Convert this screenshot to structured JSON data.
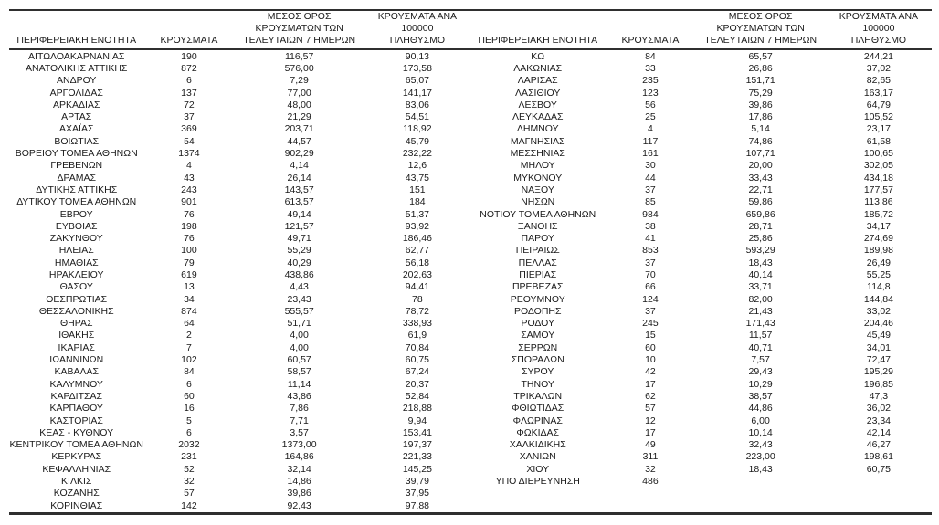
{
  "colors": {
    "background": "#ffffff",
    "text": "#1a1a1a",
    "border": "#2f2f2f"
  },
  "tables": [
    {
      "headers": [
        "ΠΕΡΙΦΕΡΕΙΑΚΗ ΕΝΟΤΗΤΑ",
        "ΚΡΟΥΣΜΑΤΑ",
        "ΜΕΣΟΣ ΟΡΟΣ\nΚΡΟΥΣΜΑΤΩΝ ΤΩΝ\nΤΕΛΕΥΤΑΙΩΝ 7 ΗΜΕΡΩΝ",
        "ΚΡΟΥΣΜΑΤΑ ΑΝΑ 100000\nΠΛΗΘΥΣΜΟ"
      ],
      "rows": [
        [
          "ΑΙΤΩΛΟΑΚΑΡΝΑΝΙΑΣ",
          "190",
          "116,57",
          "90,13"
        ],
        [
          "ΑΝΑΤΟΛΙΚΗΣ ΑΤΤΙΚΗΣ",
          "872",
          "576,00",
          "173,58"
        ],
        [
          "ΑΝΔΡΟΥ",
          "6",
          "7,29",
          "65,07"
        ],
        [
          "ΑΡΓΟΛΙΔΑΣ",
          "137",
          "77,00",
          "141,17"
        ],
        [
          "ΑΡΚΑΔΙΑΣ",
          "72",
          "48,00",
          "83,06"
        ],
        [
          "ΑΡΤΑΣ",
          "37",
          "21,29",
          "54,51"
        ],
        [
          "ΑΧΑΪΑΣ",
          "369",
          "203,71",
          "118,92"
        ],
        [
          "ΒΟΙΩΤΙΑΣ",
          "54",
          "44,57",
          "45,79"
        ],
        [
          "ΒΟΡΕΙΟΥ ΤΟΜΕΑ ΑΘΗΝΩΝ",
          "1374",
          "902,29",
          "232,22"
        ],
        [
          "ΓΡΕΒΕΝΩΝ",
          "4",
          "4,14",
          "12,6"
        ],
        [
          "ΔΡΑΜΑΣ",
          "43",
          "26,14",
          "43,75"
        ],
        [
          "ΔΥΤΙΚΗΣ ΑΤΤΙΚΗΣ",
          "243",
          "143,57",
          "151"
        ],
        [
          "ΔΥΤΙΚΟΥ ΤΟΜΕΑ ΑΘΗΝΩΝ",
          "901",
          "613,57",
          "184"
        ],
        [
          "ΕΒΡΟΥ",
          "76",
          "49,14",
          "51,37"
        ],
        [
          "ΕΥΒΟΙΑΣ",
          "198",
          "121,57",
          "93,92"
        ],
        [
          "ΖΑΚΥΝΘΟΥ",
          "76",
          "49,71",
          "186,46"
        ],
        [
          "ΗΛΕΙΑΣ",
          "100",
          "55,29",
          "62,77"
        ],
        [
          "ΗΜΑΘΙΑΣ",
          "79",
          "40,29",
          "56,18"
        ],
        [
          "ΗΡΑΚΛΕΙΟΥ",
          "619",
          "438,86",
          "202,63"
        ],
        [
          "ΘΑΣΟΥ",
          "13",
          "4,43",
          "94,41"
        ],
        [
          "ΘΕΣΠΡΩΤΙΑΣ",
          "34",
          "23,43",
          "78"
        ],
        [
          "ΘΕΣΣΑΛΟΝΙΚΗΣ",
          "874",
          "555,57",
          "78,72"
        ],
        [
          "ΘΗΡΑΣ",
          "64",
          "51,71",
          "338,93"
        ],
        [
          "ΙΘΑΚΗΣ",
          "2",
          "4,00",
          "61,9"
        ],
        [
          "ΙΚΑΡΙΑΣ",
          "7",
          "4,00",
          "70,84"
        ],
        [
          "ΙΩΑΝΝΙΝΩΝ",
          "102",
          "60,57",
          "60,75"
        ],
        [
          "ΚΑΒΑΛΑΣ",
          "84",
          "58,57",
          "67,24"
        ],
        [
          "ΚΑΛΥΜΝΟΥ",
          "6",
          "11,14",
          "20,37"
        ],
        [
          "ΚΑΡΔΙΤΣΑΣ",
          "60",
          "43,86",
          "52,84"
        ],
        [
          "ΚΑΡΠΑΘΟΥ",
          "16",
          "7,86",
          "218,88"
        ],
        [
          "ΚΑΣΤΟΡΙΑΣ",
          "5",
          "7,71",
          "9,94"
        ],
        [
          "ΚΕΑΣ - ΚΥΘΝΟΥ",
          "6",
          "3,57",
          "153,41"
        ],
        [
          "ΚΕΝΤΡΙΚΟΥ ΤΟΜΕΑ ΑΘΗΝΩΝ",
          "2032",
          "1373,00",
          "197,37"
        ],
        [
          "ΚΕΡΚΥΡΑΣ",
          "231",
          "164,86",
          "221,33"
        ],
        [
          "ΚΕΦΑΛΛΗΝΙΑΣ",
          "52",
          "32,14",
          "145,25"
        ],
        [
          "ΚΙΛΚΙΣ",
          "32",
          "14,86",
          "39,79"
        ],
        [
          "ΚΟΖΑΝΗΣ",
          "57",
          "39,86",
          "37,95"
        ],
        [
          "ΚΟΡΙΝΘΙΑΣ",
          "142",
          "92,43",
          "97,88"
        ]
      ]
    },
    {
      "headers": [
        "ΠΕΡΙΦΕΡΕΙΑΚΗ ΕΝΟΤΗΤΑ",
        "ΚΡΟΥΣΜΑΤΑ",
        "ΜΕΣΟΣ ΟΡΟΣ\nΚΡΟΥΣΜΑΤΩΝ ΤΩΝ\nΤΕΛΕΥΤΑΙΩΝ 7 ΗΜΕΡΩΝ",
        "ΚΡΟΥΣΜΑΤΑ ΑΝΑ 100000\nΠΛΗΘΥΣΜΟ"
      ],
      "rows": [
        [
          "ΚΩ",
          "84",
          "65,57",
          "244,21"
        ],
        [
          "ΛΑΚΩΝΙΑΣ",
          "33",
          "26,86",
          "37,02"
        ],
        [
          "ΛΑΡΙΣΑΣ",
          "235",
          "151,71",
          "82,65"
        ],
        [
          "ΛΑΣΙΘΙΟΥ",
          "123",
          "75,29",
          "163,17"
        ],
        [
          "ΛΕΣΒΟΥ",
          "56",
          "39,86",
          "64,79"
        ],
        [
          "ΛΕΥΚΑΔΑΣ",
          "25",
          "17,86",
          "105,52"
        ],
        [
          "ΛΗΜΝΟΥ",
          "4",
          "5,14",
          "23,17"
        ],
        [
          "ΜΑΓΝΗΣΙΑΣ",
          "117",
          "74,86",
          "61,58"
        ],
        [
          "ΜΕΣΣΗΝΙΑΣ",
          "161",
          "107,71",
          "100,65"
        ],
        [
          "ΜΗΛΟΥ",
          "30",
          "20,00",
          "302,05"
        ],
        [
          "ΜΥΚΟΝΟΥ",
          "44",
          "33,43",
          "434,18"
        ],
        [
          "ΝΑΞΟΥ",
          "37",
          "22,71",
          "177,57"
        ],
        [
          "ΝΗΣΩΝ",
          "85",
          "59,86",
          "113,86"
        ],
        [
          "ΝΟΤΙΟΥ ΤΟΜΕΑ ΑΘΗΝΩΝ",
          "984",
          "659,86",
          "185,72"
        ],
        [
          "ΞΑΝΘΗΣ",
          "38",
          "28,71",
          "34,17"
        ],
        [
          "ΠΑΡΟΥ",
          "41",
          "25,86",
          "274,69"
        ],
        [
          "ΠΕΙΡΑΙΩΣ",
          "853",
          "593,29",
          "189,98"
        ],
        [
          "ΠΕΛΛΑΣ",
          "37",
          "18,43",
          "26,49"
        ],
        [
          "ΠΙΕΡΙΑΣ",
          "70",
          "40,14",
          "55,25"
        ],
        [
          "ΠΡΕΒΕΖΑΣ",
          "66",
          "33,71",
          "114,8"
        ],
        [
          "ΡΕΘΥΜΝΟΥ",
          "124",
          "82,00",
          "144,84"
        ],
        [
          "ΡΟΔΟΠΗΣ",
          "37",
          "21,43",
          "33,02"
        ],
        [
          "ΡΟΔΟΥ",
          "245",
          "171,43",
          "204,46"
        ],
        [
          "ΣΑΜΟΥ",
          "15",
          "11,57",
          "45,49"
        ],
        [
          "ΣΕΡΡΩΝ",
          "60",
          "40,71",
          "34,01"
        ],
        [
          "ΣΠΟΡΑΔΩΝ",
          "10",
          "7,57",
          "72,47"
        ],
        [
          "ΣΥΡΟΥ",
          "42",
          "29,43",
          "195,29"
        ],
        [
          "ΤΗΝΟΥ",
          "17",
          "10,29",
          "196,85"
        ],
        [
          "ΤΡΙΚΑΛΩΝ",
          "62",
          "38,57",
          "47,3"
        ],
        [
          "ΦΘΙΩΤΙΔΑΣ",
          "57",
          "44,86",
          "36,02"
        ],
        [
          "ΦΛΩΡΙΝΑΣ",
          "12",
          "6,00",
          "23,34"
        ],
        [
          "ΦΩΚΙΔΑΣ",
          "17",
          "10,14",
          "42,14"
        ],
        [
          "ΧΑΛΚΙΔΙΚΗΣ",
          "49",
          "32,43",
          "46,27"
        ],
        [
          "ΧΑΝΙΩΝ",
          "311",
          "223,00",
          "198,61"
        ],
        [
          "ΧΙΟΥ",
          "32",
          "18,43",
          "60,75"
        ],
        [
          "ΥΠΟ ΔΙΕΡΕΥΝΗΣΗ",
          "486",
          "",
          ""
        ]
      ]
    }
  ]
}
